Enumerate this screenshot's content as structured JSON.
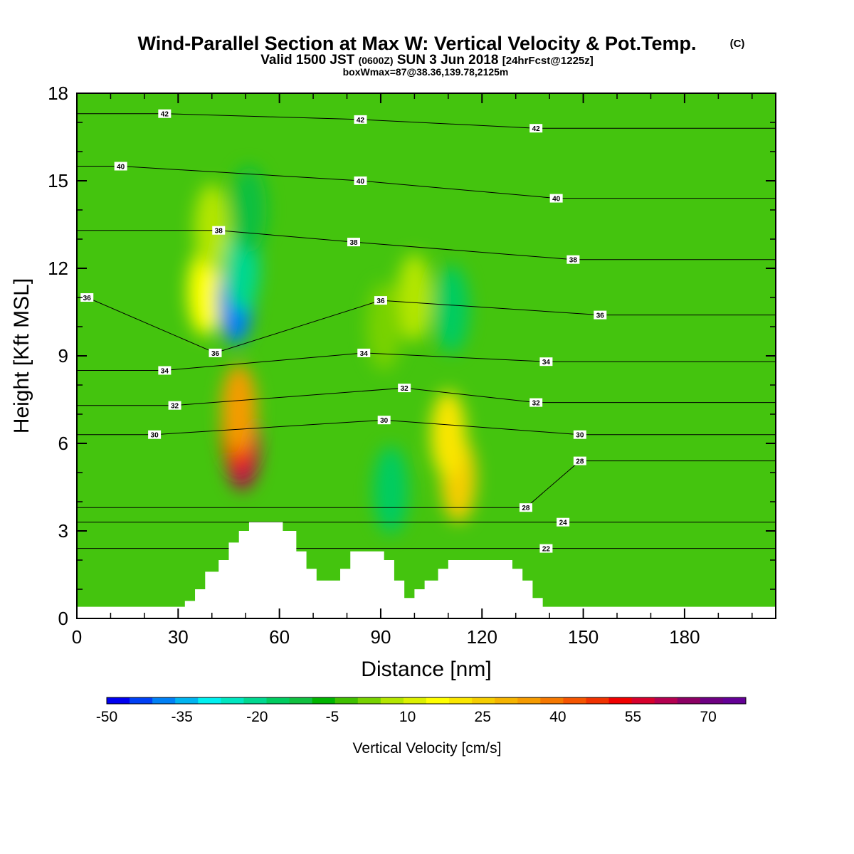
{
  "title": {
    "main": "Wind-Parallel Section at Max W: Vertical Velocity & Pot.Temp.",
    "copyright": "(C)",
    "valid_prefix": "Valid 1500 JST",
    "utc": "(0600Z)",
    "date": "SUN 3 Jun 2018",
    "fcst": "[24hrFcst@1225z]",
    "boxmax": "boxWmax=87@38.36,139.78,2125m"
  },
  "colors": {
    "background_field": "#44c40e",
    "terrain": "#ffffff",
    "contour": "#000000",
    "colorbar": [
      "#0000f0",
      "#0040f5",
      "#0080f5",
      "#00b4f0",
      "#00f0f0",
      "#00e6c0",
      "#00d890",
      "#00cc60",
      "#10c040",
      "#00b400",
      "#40c000",
      "#78d200",
      "#b4e600",
      "#dcf000",
      "#ffff00",
      "#fae600",
      "#f5cd00",
      "#f5b400",
      "#f59b00",
      "#f57800",
      "#f55500",
      "#f03200",
      "#f00000",
      "#d7002d",
      "#b40050",
      "#8c0064",
      "#6e0082",
      "#640096"
    ]
  },
  "chart_data": {
    "type": "heatmap",
    "xlabel": "Distance [nm]",
    "ylabel": "Height [Kft MSL]",
    "xlim": [
      0,
      207
    ],
    "ylim": [
      0,
      18
    ],
    "xticks": [
      0,
      30,
      60,
      90,
      120,
      150,
      180
    ],
    "yticks": [
      0,
      3,
      6,
      9,
      12,
      15,
      18
    ],
    "colorbar": {
      "label": "Vertical Velocity [cm/s]",
      "min": -50,
      "max": 77.5,
      "step": 5,
      "tick_values": [
        -50,
        -35,
        -20,
        -5,
        10,
        25,
        40,
        55,
        70
      ]
    },
    "vertical_velocity_features": [
      {
        "x": 49,
        "y": 5.9,
        "w": 70
      },
      {
        "x": 48,
        "y": 6.5,
        "w": 55
      },
      {
        "x": 48,
        "y": 7.2,
        "w": 40
      },
      {
        "x": 113,
        "y": 4.8,
        "w": 30
      },
      {
        "x": 110,
        "y": 6.3,
        "w": 25
      },
      {
        "x": 38,
        "y": 11.2,
        "w": 20
      },
      {
        "x": 40,
        "y": 13.4,
        "w": 12
      },
      {
        "x": 100,
        "y": 11.0,
        "w": 10
      },
      {
        "x": 91,
        "y": 10.0,
        "w": 5
      },
      {
        "x": 47,
        "y": 10.9,
        "w": -40
      },
      {
        "x": 49,
        "y": 12.0,
        "w": -20
      },
      {
        "x": 111,
        "y": 10.6,
        "w": -15
      },
      {
        "x": 93,
        "y": 4.4,
        "w": -15
      },
      {
        "x": 51,
        "y": 14.0,
        "w": -10
      }
    ],
    "potential_temperature_labels": [
      {
        "value": "42",
        "x": 26,
        "y": 17.3
      },
      {
        "value": "42",
        "x": 84,
        "y": 17.1
      },
      {
        "value": "42",
        "x": 136,
        "y": 16.8
      },
      {
        "value": "40",
        "x": 13,
        "y": 15.5
      },
      {
        "value": "40",
        "x": 84,
        "y": 15.0
      },
      {
        "value": "40",
        "x": 142,
        "y": 14.4
      },
      {
        "value": "38",
        "x": 42,
        "y": 13.3
      },
      {
        "value": "38",
        "x": 82,
        "y": 12.9
      },
      {
        "value": "38",
        "x": 147,
        "y": 12.3
      },
      {
        "value": "36",
        "x": 3,
        "y": 11.0
      },
      {
        "value": "36",
        "x": 90,
        "y": 10.9
      },
      {
        "value": "36",
        "x": 155,
        "y": 10.4
      },
      {
        "value": "36",
        "x": 41,
        "y": 9.1
      },
      {
        "value": "34",
        "x": 26,
        "y": 8.5
      },
      {
        "value": "34",
        "x": 85,
        "y": 9.1
      },
      {
        "value": "34",
        "x": 139,
        "y": 8.8
      },
      {
        "value": "32",
        "x": 29,
        "y": 7.3
      },
      {
        "value": "32",
        "x": 97,
        "y": 7.9
      },
      {
        "value": "32",
        "x": 136,
        "y": 7.4
      },
      {
        "value": "30",
        "x": 23,
        "y": 6.3
      },
      {
        "value": "30",
        "x": 91,
        "y": 6.8
      },
      {
        "value": "30",
        "x": 149,
        "y": 6.3
      },
      {
        "value": "28",
        "x": 149,
        "y": 5.4
      },
      {
        "value": "28",
        "x": 133,
        "y": 3.8
      },
      {
        "value": "24",
        "x": 144,
        "y": 3.3
      },
      {
        "value": "22",
        "x": 139,
        "y": 2.4
      }
    ],
    "terrain_profile": [
      [
        0,
        0.4
      ],
      [
        32,
        0.4
      ],
      [
        32,
        0.6
      ],
      [
        35,
        0.6
      ],
      [
        35,
        1.0
      ],
      [
        38,
        1.0
      ],
      [
        38,
        1.6
      ],
      [
        42,
        1.6
      ],
      [
        42,
        2.0
      ],
      [
        45,
        2.0
      ],
      [
        45,
        2.6
      ],
      [
        48,
        2.6
      ],
      [
        48,
        3.0
      ],
      [
        51,
        3.0
      ],
      [
        51,
        3.3
      ],
      [
        61,
        3.3
      ],
      [
        61,
        3.0
      ],
      [
        65,
        3.0
      ],
      [
        65,
        2.3
      ],
      [
        68,
        2.3
      ],
      [
        68,
        1.7
      ],
      [
        71,
        1.7
      ],
      [
        71,
        1.3
      ],
      [
        78,
        1.3
      ],
      [
        78,
        1.7
      ],
      [
        81,
        1.7
      ],
      [
        81,
        2.3
      ],
      [
        91,
        2.3
      ],
      [
        91,
        2.0
      ],
      [
        94,
        2.0
      ],
      [
        94,
        1.3
      ],
      [
        97,
        1.3
      ],
      [
        97,
        0.7
      ],
      [
        100,
        0.7
      ],
      [
        100,
        1.0
      ],
      [
        103,
        1.0
      ],
      [
        103,
        1.3
      ],
      [
        107,
        1.3
      ],
      [
        107,
        1.7
      ],
      [
        110,
        1.7
      ],
      [
        110,
        2.0
      ],
      [
        129,
        2.0
      ],
      [
        129,
        1.7
      ],
      [
        132,
        1.7
      ],
      [
        132,
        1.3
      ],
      [
        135,
        1.3
      ],
      [
        135,
        0.7
      ],
      [
        138,
        0.7
      ],
      [
        138,
        0.4
      ],
      [
        207,
        0.4
      ]
    ]
  }
}
